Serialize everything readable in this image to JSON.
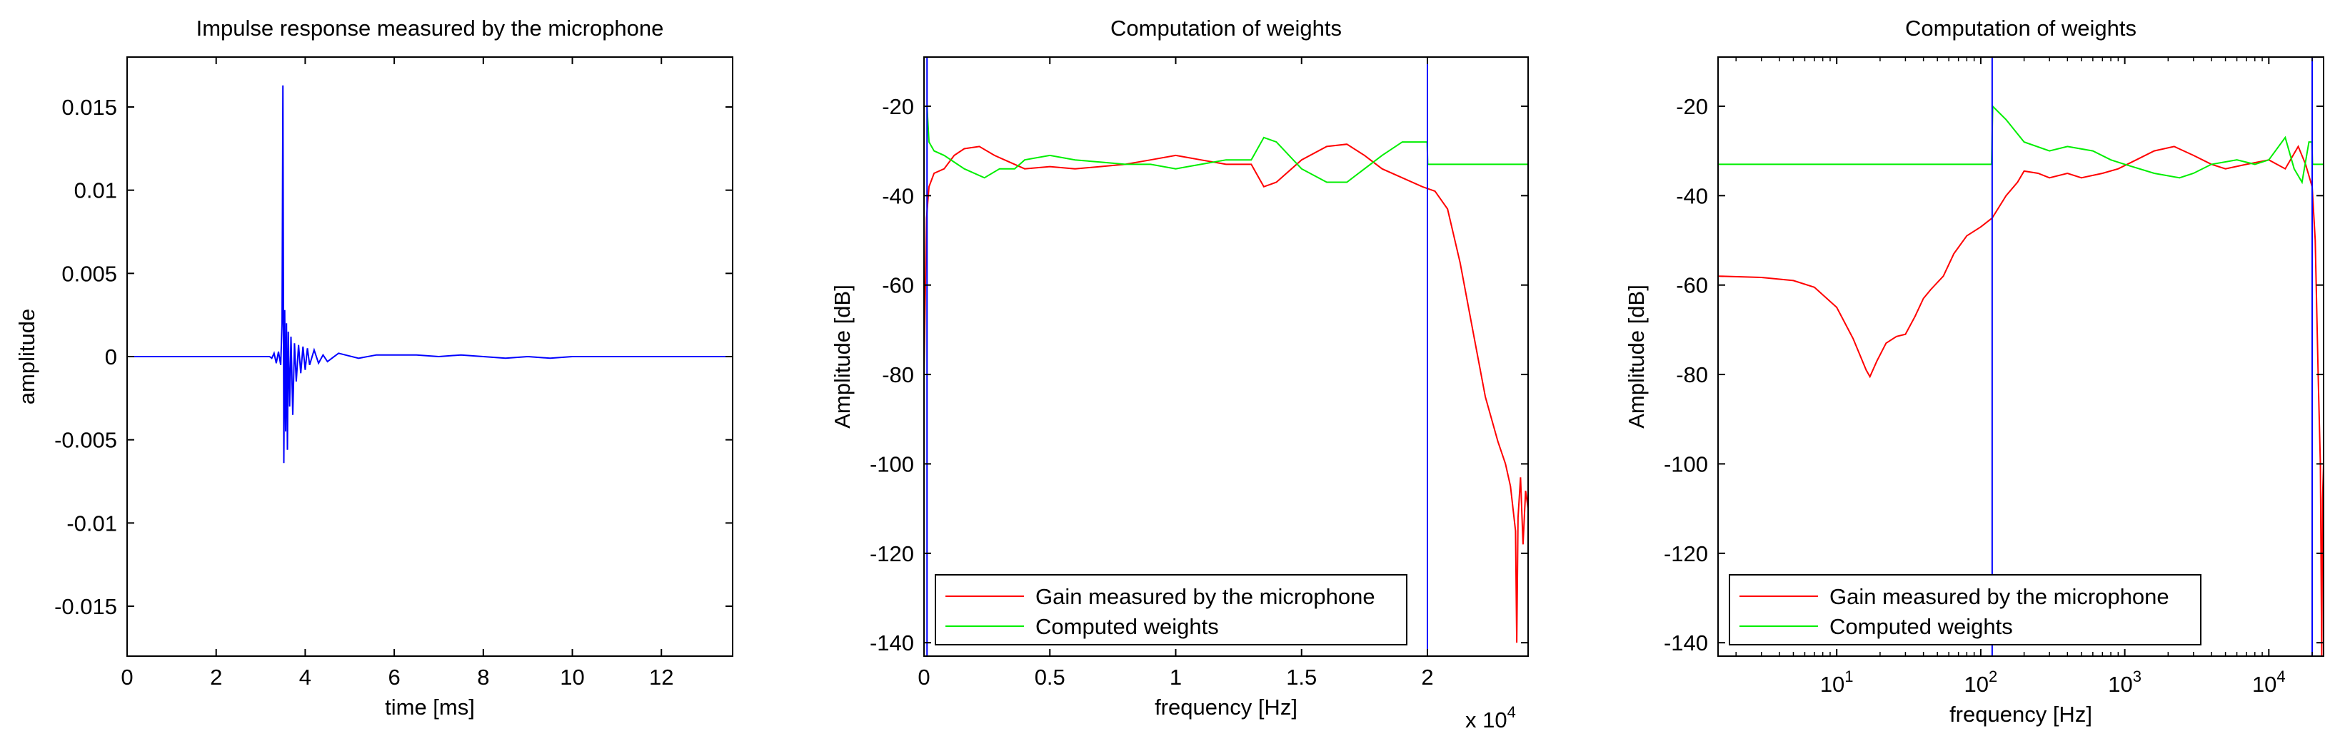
{
  "chart_data": [
    {
      "type": "line",
      "title": "Impulse response measured by the microphone",
      "xlabel": "time [ms]",
      "ylabel": "amplitude",
      "xlim": [
        0,
        13.6
      ],
      "ylim": [
        -0.018,
        0.018
      ],
      "xticks": [
        0,
        2,
        4,
        6,
        8,
        10,
        12
      ],
      "xtick_labels": [
        "0",
        "2",
        "4",
        "6",
        "8",
        "10",
        "12"
      ],
      "yticks": [
        -0.015,
        -0.01,
        -0.005,
        0,
        0.005,
        0.01,
        0.015
      ],
      "ytick_labels": [
        "-0.015",
        "-0.01",
        "-0.005",
        "0",
        "0.005",
        "0.01",
        "0.015"
      ],
      "grid": false,
      "series": [
        {
          "color": "#0000ff",
          "points": [
            [
              0,
              0
            ],
            [
              3.2,
              0
            ],
            [
              3.25,
              -0.0001
            ],
            [
              3.3,
              0.0002
            ],
            [
              3.35,
              -0.0004
            ],
            [
              3.4,
              0.0003
            ],
            [
              3.45,
              -0.0005
            ],
            [
              3.48,
              0.002
            ],
            [
              3.5,
              0.0163
            ],
            [
              3.52,
              -0.0064
            ],
            [
              3.54,
              0.0028
            ],
            [
              3.56,
              -0.0045
            ],
            [
              3.58,
              0.002
            ],
            [
              3.6,
              -0.0056
            ],
            [
              3.62,
              0.0015
            ],
            [
              3.65,
              -0.003
            ],
            [
              3.68,
              0.0012
            ],
            [
              3.72,
              -0.0035
            ],
            [
              3.76,
              0.0008
            ],
            [
              3.8,
              -0.0015
            ],
            [
              3.85,
              0.0007
            ],
            [
              3.9,
              -0.001
            ],
            [
              3.95,
              0.0006
            ],
            [
              4.0,
              -0.0008
            ],
            [
              4.05,
              0.0005
            ],
            [
              4.1,
              -0.0005
            ],
            [
              4.2,
              0.0004
            ],
            [
              4.3,
              -0.0004
            ],
            [
              4.4,
              0.0001
            ],
            [
              4.5,
              -0.0003
            ],
            [
              4.6,
              -0.0001
            ],
            [
              4.75,
              0.0002
            ],
            [
              4.9,
              0.0001
            ],
            [
              5.2,
              -0.0001
            ],
            [
              5.6,
              0.0001
            ],
            [
              6.0,
              0.0001
            ],
            [
              6.5,
              0.0001
            ],
            [
              7.0,
              0
            ],
            [
              7.5,
              0.0001
            ],
            [
              8.0,
              0
            ],
            [
              8.5,
              -0.0001
            ],
            [
              9.0,
              0
            ],
            [
              9.5,
              -0.0001
            ],
            [
              10.0,
              0
            ],
            [
              10.5,
              0
            ],
            [
              11.0,
              0
            ],
            [
              11.5,
              0
            ],
            [
              12.0,
              0
            ],
            [
              12.5,
              0
            ],
            [
              13.0,
              0
            ],
            [
              13.6,
              0
            ]
          ]
        }
      ]
    },
    {
      "type": "line",
      "title": "Computation of weights",
      "xlabel": "frequency [Hz]",
      "ylabel": "Amplitude [dB]",
      "x_exponent": "x 10",
      "x_exponent_power": "4",
      "xlim": [
        0,
        24000
      ],
      "ylim": [
        -143,
        -9
      ],
      "xticks": [
        0,
        5000,
        10000,
        15000,
        20000
      ],
      "xtick_labels": [
        "0",
        "0.5",
        "1",
        "1.5",
        "2"
      ],
      "yticks": [
        -140,
        -120,
        -100,
        -80,
        -60,
        -40,
        -20
      ],
      "ytick_labels": [
        "-140",
        "-120",
        "-100",
        "-80",
        "-60",
        "-40",
        "-20"
      ],
      "grid": false,
      "legend_position": "bottom-left",
      "vlines": [
        {
          "x": 120,
          "color": "#0000ff"
        },
        {
          "x": 20000,
          "color": "#0000ff"
        }
      ],
      "series": [
        {
          "name": "Gain measured by the microphone",
          "color": "#ff0000",
          "points": [
            [
              0,
              -80
            ],
            [
              100,
              -45
            ],
            [
              200,
              -38
            ],
            [
              400,
              -35
            ],
            [
              800,
              -34
            ],
            [
              1200,
              -31
            ],
            [
              1600,
              -29.5
            ],
            [
              2200,
              -29
            ],
            [
              2800,
              -31
            ],
            [
              3200,
              -32
            ],
            [
              4000,
              -34
            ],
            [
              5000,
              -33.5
            ],
            [
              6000,
              -34
            ],
            [
              7000,
              -33.5
            ],
            [
              8000,
              -33
            ],
            [
              9000,
              -32
            ],
            [
              10000,
              -31
            ],
            [
              11000,
              -32
            ],
            [
              12000,
              -33
            ],
            [
              13000,
              -33
            ],
            [
              13500,
              -38
            ],
            [
              14000,
              -37
            ],
            [
              15000,
              -32
            ],
            [
              16000,
              -29
            ],
            [
              16800,
              -28.5
            ],
            [
              17500,
              -31
            ],
            [
              18200,
              -34
            ],
            [
              19000,
              -36
            ],
            [
              19800,
              -38
            ],
            [
              20300,
              -39
            ],
            [
              20800,
              -43
            ],
            [
              21300,
              -55
            ],
            [
              21800,
              -70
            ],
            [
              22300,
              -85
            ],
            [
              22800,
              -95
            ],
            [
              23100,
              -100
            ],
            [
              23300,
              -105
            ],
            [
              23500,
              -115
            ],
            [
              23550,
              -140
            ],
            [
              23600,
              -112
            ],
            [
              23700,
              -103
            ],
            [
              23800,
              -118
            ],
            [
              23900,
              -106
            ],
            [
              24000,
              -110
            ]
          ]
        },
        {
          "name": "Computed weights",
          "color": "#00ee00",
          "points": [
            [
              0,
              -20
            ],
            [
              120,
              -20
            ],
            [
              200,
              -28
            ],
            [
              400,
              -30
            ],
            [
              800,
              -31
            ],
            [
              1600,
              -34
            ],
            [
              2400,
              -36
            ],
            [
              3000,
              -34
            ],
            [
              3600,
              -34
            ],
            [
              4000,
              -32
            ],
            [
              5000,
              -31
            ],
            [
              6000,
              -32
            ],
            [
              7000,
              -32.5
            ],
            [
              8000,
              -33
            ],
            [
              9000,
              -33
            ],
            [
              10000,
              -34
            ],
            [
              11000,
              -33
            ],
            [
              12000,
              -32
            ],
            [
              13000,
              -32
            ],
            [
              13500,
              -27
            ],
            [
              14000,
              -28
            ],
            [
              15000,
              -34
            ],
            [
              16000,
              -37
            ],
            [
              16800,
              -37
            ],
            [
              17500,
              -34
            ],
            [
              18200,
              -31
            ],
            [
              19000,
              -28
            ],
            [
              19990,
              -28
            ],
            [
              20010,
              -33
            ],
            [
              24000,
              -33
            ]
          ]
        }
      ]
    },
    {
      "type": "line",
      "title": "Computation of weights",
      "xlabel": "frequency [Hz]",
      "ylabel": "Amplitude [dB]",
      "xscale": "log",
      "xlim": [
        1.5,
        24000
      ],
      "ylim": [
        -143,
        -9
      ],
      "xticks": [
        10,
        100,
        1000,
        10000
      ],
      "xtick_bases": [
        "10",
        "10",
        "10",
        "10"
      ],
      "xtick_powers": [
        "1",
        "2",
        "3",
        "4"
      ],
      "yticks": [
        -140,
        -120,
        -100,
        -80,
        -60,
        -40,
        -20
      ],
      "ytick_labels": [
        "-140",
        "-120",
        "-100",
        "-80",
        "-60",
        "-40",
        "-20"
      ],
      "grid": false,
      "legend_position": "bottom-left",
      "vlines": [
        {
          "x": 120,
          "color": "#0000ff"
        },
        {
          "x": 20000,
          "color": "#0000ff"
        }
      ],
      "series": [
        {
          "name": "Gain measured by the microphone",
          "color": "#ff0000",
          "points": [
            [
              1.5,
              -58
            ],
            [
              3,
              -58.3
            ],
            [
              5,
              -59
            ],
            [
              7,
              -60.5
            ],
            [
              10,
              -65
            ],
            [
              13,
              -72
            ],
            [
              16,
              -79
            ],
            [
              17,
              -80.5
            ],
            [
              19,
              -77
            ],
            [
              22,
              -73
            ],
            [
              26,
              -71.5
            ],
            [
              30,
              -71
            ],
            [
              35,
              -67
            ],
            [
              40,
              -63
            ],
            [
              45,
              -61
            ],
            [
              55,
              -58
            ],
            [
              65,
              -53
            ],
            [
              80,
              -49
            ],
            [
              100,
              -47
            ],
            [
              120,
              -45
            ],
            [
              150,
              -40
            ],
            [
              180,
              -37
            ],
            [
              200,
              -34.5
            ],
            [
              250,
              -35
            ],
            [
              300,
              -36
            ],
            [
              400,
              -35
            ],
            [
              500,
              -36
            ],
            [
              700,
              -35
            ],
            [
              900,
              -34
            ],
            [
              1200,
              -32
            ],
            [
              1600,
              -30
            ],
            [
              2200,
              -29
            ],
            [
              3000,
              -31
            ],
            [
              4000,
              -33
            ],
            [
              5000,
              -34
            ],
            [
              7000,
              -33
            ],
            [
              10000,
              -32
            ],
            [
              13000,
              -34
            ],
            [
              16000,
              -29
            ],
            [
              18000,
              -33
            ],
            [
              20000,
              -38
            ],
            [
              21000,
              -50
            ],
            [
              22000,
              -80
            ],
            [
              22800,
              -100
            ],
            [
              23300,
              -143
            ],
            [
              23600,
              -108
            ],
            [
              24000,
              -100
            ]
          ]
        },
        {
          "name": "Computed weights",
          "color": "#00ee00",
          "points": [
            [
              1.5,
              -33
            ],
            [
              119,
              -33
            ],
            [
              121,
              -20
            ],
            [
              150,
              -23
            ],
            [
              200,
              -28
            ],
            [
              300,
              -30
            ],
            [
              400,
              -29
            ],
            [
              600,
              -30
            ],
            [
              800,
              -32
            ],
            [
              1000,
              -33
            ],
            [
              1600,
              -35
            ],
            [
              2400,
              -36
            ],
            [
              3000,
              -35
            ],
            [
              4000,
              -33
            ],
            [
              6000,
              -32
            ],
            [
              8000,
              -33
            ],
            [
              10000,
              -32
            ],
            [
              13000,
              -27
            ],
            [
              15000,
              -34
            ],
            [
              17000,
              -37
            ],
            [
              19000,
              -28
            ],
            [
              19900,
              -28
            ],
            [
              20100,
              -33
            ],
            [
              24000,
              -33
            ]
          ]
        }
      ]
    }
  ]
}
